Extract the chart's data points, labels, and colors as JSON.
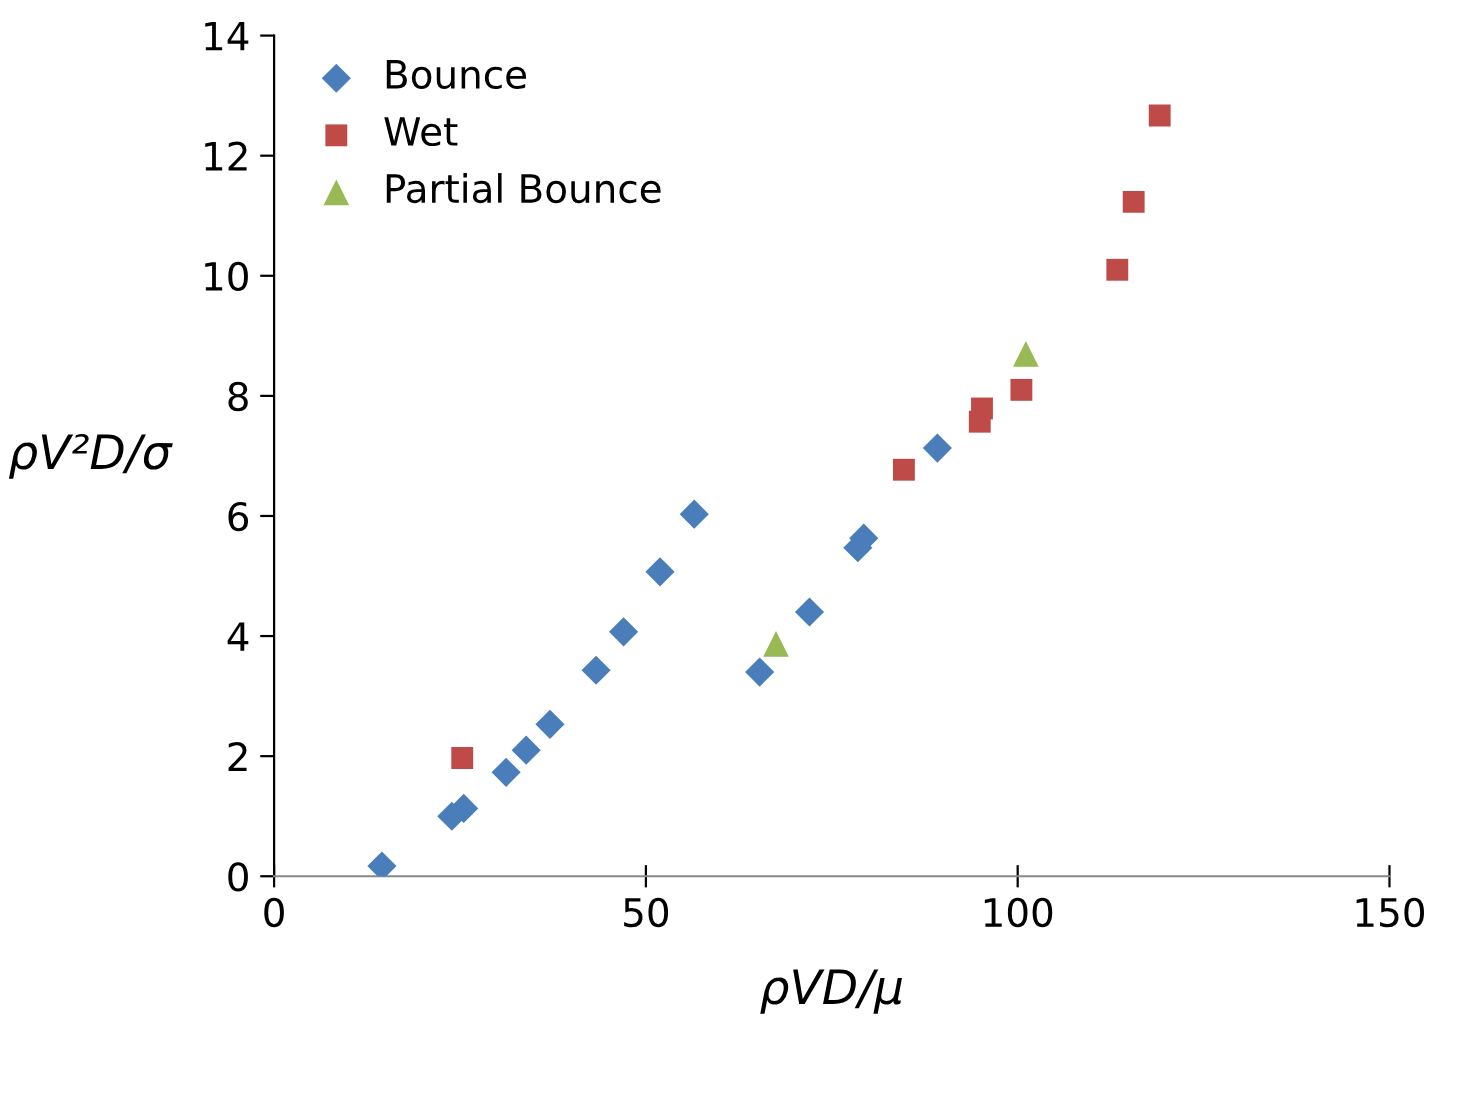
{
  "chart_data": {
    "type": "scatter",
    "xlabel": "ρVD/μ",
    "ylabel": "ρV²D/σ",
    "xlim": [
      0,
      150
    ],
    "xticks": [
      0,
      50,
      100,
      150
    ],
    "ylim": [
      0,
      14
    ],
    "yticks": [
      0,
      2,
      4,
      6,
      8,
      10,
      12,
      14
    ],
    "grid": false,
    "legend": "top left",
    "series": [
      {
        "name": "Bounce",
        "color": "#4a7ebb",
        "marker": "diamond",
        "x": [
          14.5,
          23.9,
          25.5,
          31.2,
          33.9,
          37.1,
          43.3,
          47.0,
          51.9,
          56.5,
          65.3,
          72.0,
          78.5,
          79.3,
          89.2
        ],
        "values": [
          0.17,
          1.0,
          1.13,
          1.73,
          2.1,
          2.53,
          3.43,
          4.07,
          5.07,
          6.03,
          3.4,
          4.4,
          5.47,
          5.63,
          7.13
        ]
      },
      {
        "name": "Wet",
        "color": "#be4b48",
        "marker": "square",
        "x": [
          25.3,
          84.7,
          94.9,
          95.2,
          100.5,
          113.4,
          115.6,
          119.1
        ],
        "values": [
          1.97,
          6.77,
          7.57,
          7.79,
          8.1,
          10.1,
          11.23,
          12.67
        ]
      },
      {
        "name": "Partial Bounce",
        "color": "#98b954",
        "marker": "triangle",
        "x": [
          67.5,
          101.1
        ],
        "values": [
          3.87,
          8.7
        ]
      }
    ]
  }
}
